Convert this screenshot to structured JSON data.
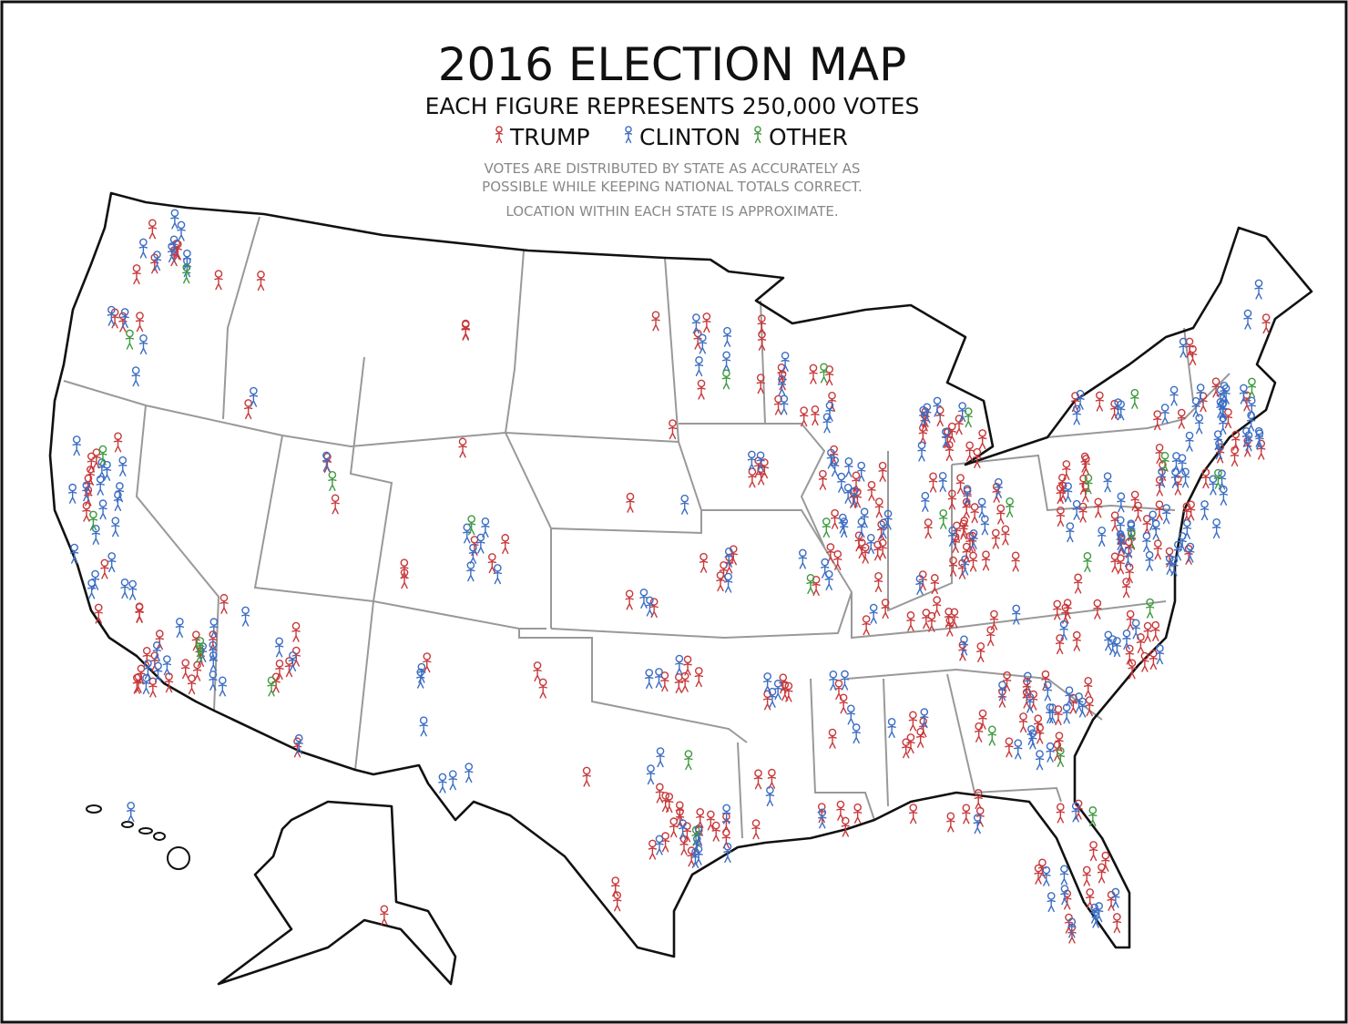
{
  "title": "2016 ELECTION MAP",
  "subtitle": "EACH FIGURE REPRESENTS 250,000 VOTES",
  "legend": [
    {
      "name": "TRUMP",
      "color": "#c8383a"
    },
    {
      "name": "CLINTON",
      "color": "#3b6dc3"
    },
    {
      "name": "OTHER",
      "color": "#3e9a3e"
    }
  ],
  "notes": [
    "VOTES ARE DISTRIBUTED BY STATE AS ACCURATELY AS",
    "POSSIBLE WHILE KEEPING NATIONAL TOTALS CORRECT.",
    "LOCATION WITHIN EACH STATE IS APPROXIMATE."
  ]
}
